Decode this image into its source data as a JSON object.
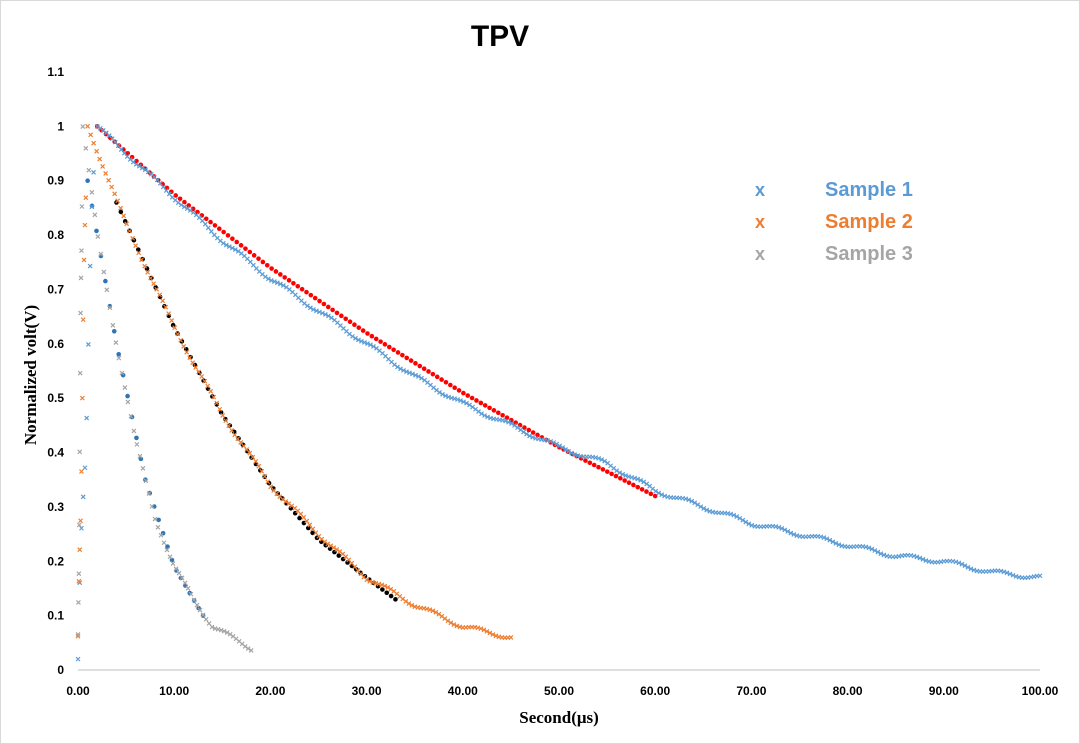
{
  "chart_data": {
    "type": "scatter",
    "title": "TPV",
    "xlabel": "Second(μs)",
    "ylabel": "Normalized volt(V)",
    "xlim": [
      0,
      100
    ],
    "ylim": [
      0,
      1.1
    ],
    "x_ticks": [
      "0.00",
      "10.00",
      "20.00",
      "30.00",
      "40.00",
      "50.00",
      "60.00",
      "70.00",
      "80.00",
      "90.00",
      "100.00"
    ],
    "y_ticks": [
      "0",
      "0.1",
      "0.2",
      "0.3",
      "0.4",
      "0.5",
      "0.6",
      "0.7",
      "0.8",
      "0.9",
      "1",
      "1.1"
    ],
    "legend_position": "top-right",
    "series": [
      {
        "name": "Sample 1",
        "marker": "x",
        "color": "#5b9bd5",
        "peak_x": 2.0,
        "points": [
          [
            2,
            1.0
          ],
          [
            5,
            0.95
          ],
          [
            10,
            0.87
          ],
          [
            15,
            0.79
          ],
          [
            20,
            0.72
          ],
          [
            25,
            0.66
          ],
          [
            30,
            0.6
          ],
          [
            35,
            0.54
          ],
          [
            40,
            0.49
          ],
          [
            45,
            0.45
          ],
          [
            50,
            0.41
          ],
          [
            55,
            0.38
          ],
          [
            60,
            0.33
          ],
          [
            65,
            0.3
          ],
          [
            70,
            0.27
          ],
          [
            75,
            0.25
          ],
          [
            80,
            0.23
          ],
          [
            85,
            0.21
          ],
          [
            90,
            0.2
          ],
          [
            95,
            0.18
          ],
          [
            100,
            0.17
          ]
        ],
        "fit": {
          "color": "#ff0000",
          "x_range": [
            2,
            60
          ],
          "points": [
            [
              2,
              1.0
            ],
            [
              10,
              0.875
            ],
            [
              20,
              0.74
            ],
            [
              30,
              0.62
            ],
            [
              40,
              0.51
            ],
            [
              50,
              0.41
            ],
            [
              60,
              0.32
            ]
          ]
        }
      },
      {
        "name": "Sample 2",
        "marker": "x",
        "color": "#ed7d31",
        "peak_x": 1.0,
        "points": [
          [
            1,
            1.0
          ],
          [
            5,
            0.82
          ],
          [
            10,
            0.63
          ],
          [
            15,
            0.47
          ],
          [
            20,
            0.34
          ],
          [
            25,
            0.25
          ],
          [
            30,
            0.17
          ],
          [
            35,
            0.12
          ],
          [
            40,
            0.08
          ],
          [
            45,
            0.06
          ]
        ],
        "fit": {
          "color": "#000000",
          "x_range": [
            4,
            33
          ],
          "points": [
            [
              4,
              0.86
            ],
            [
              10,
              0.63
            ],
            [
              15,
              0.47
            ],
            [
              20,
              0.34
            ],
            [
              25,
              0.24
            ],
            [
              30,
              0.17
            ],
            [
              33,
              0.13
            ]
          ]
        }
      },
      {
        "name": "Sample 3",
        "marker": "x",
        "color": "#a5a5a5",
        "peak_x": 0.5,
        "points": [
          [
            0.5,
            1.0
          ],
          [
            2,
            0.8
          ],
          [
            4,
            0.6
          ],
          [
            6,
            0.42
          ],
          [
            8,
            0.28
          ],
          [
            10,
            0.19
          ],
          [
            12,
            0.13
          ],
          [
            14,
            0.08
          ],
          [
            16,
            0.06
          ],
          [
            18,
            0.04
          ]
        ],
        "fit": {
          "color": "#2e75b6",
          "x_range": [
            1,
            13
          ],
          "points": [
            [
              1,
              0.9
            ],
            [
              4,
              0.6
            ],
            [
              7,
              0.35
            ],
            [
              10,
              0.19
            ],
            [
              13,
              0.1
            ]
          ]
        }
      }
    ]
  }
}
